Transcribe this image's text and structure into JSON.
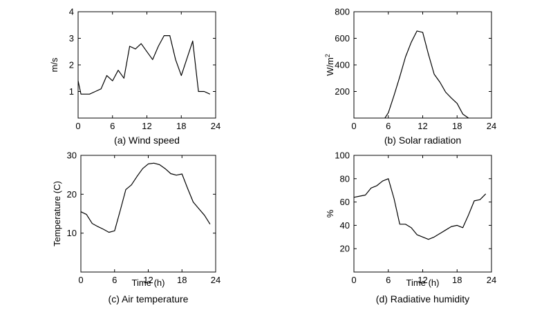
{
  "chart_data": [
    {
      "type": "line",
      "caption": "(a) Wind speed",
      "xlabel": "",
      "ylabel": "m/s",
      "xlim": [
        0,
        24
      ],
      "ylim": [
        0,
        4
      ],
      "xticks": [
        0,
        6,
        12,
        18,
        24
      ],
      "yticks": [
        1,
        2,
        3,
        4
      ],
      "grid": false,
      "series": [
        {
          "x": [
            0,
            0.5,
            1,
            2,
            3,
            4,
            5,
            6,
            7,
            8,
            9,
            10,
            11,
            12,
            13,
            14,
            15,
            16,
            17,
            18,
            20,
            21,
            22,
            23
          ],
          "y": [
            1.4,
            0.9,
            0.9,
            0.9,
            1.0,
            1.1,
            1.6,
            1.4,
            1.8,
            1.5,
            2.7,
            2.6,
            2.8,
            2.5,
            2.2,
            2.7,
            3.1,
            3.1,
            2.2,
            1.6,
            2.9,
            1.0,
            1.0,
            0.9
          ]
        }
      ]
    },
    {
      "type": "line",
      "caption": "(b) Solar radiation",
      "xlabel": "",
      "ylabel": "W/m",
      "ylabel_sup": "2",
      "xlim": [
        0,
        24
      ],
      "ylim": [
        0,
        800
      ],
      "xticks": [
        0,
        6,
        12,
        18,
        24
      ],
      "yticks": [
        200,
        400,
        600,
        800
      ],
      "grid": false,
      "series": [
        {
          "x": [
            5.4,
            6,
            7,
            8,
            9,
            10,
            11,
            12,
            13,
            14,
            15,
            16,
            17,
            18,
            19,
            20
          ],
          "y": [
            0,
            40,
            170,
            310,
            460,
            570,
            655,
            645,
            480,
            330,
            270,
            195,
            150,
            110,
            30,
            0
          ]
        }
      ]
    },
    {
      "type": "line",
      "caption": "(c) Air temperature",
      "xlabel": "Time (h)",
      "ylabel": "Temperature (C)",
      "xlim": [
        0,
        24
      ],
      "ylim": [
        0,
        30
      ],
      "xticks": [
        0,
        6,
        12,
        18,
        24
      ],
      "yticks": [
        10,
        20,
        30
      ],
      "grid": false,
      "series": [
        {
          "x": [
            0,
            1,
            2,
            3,
            4,
            5,
            6,
            7,
            8,
            9,
            10,
            11,
            12,
            13,
            14,
            15,
            16,
            17,
            18,
            19,
            20,
            21,
            22,
            23
          ],
          "y": [
            15.5,
            14.8,
            12.5,
            11.7,
            11.0,
            10.2,
            10.6,
            15.8,
            21.2,
            22.4,
            24.6,
            26.6,
            27.8,
            28.0,
            27.6,
            26.6,
            25.3,
            24.9,
            25.2,
            21.5,
            18.0,
            16.3,
            14.6,
            12.3
          ]
        }
      ]
    },
    {
      "type": "line",
      "caption": "(d) Radiative humidity",
      "xlabel": "Time (h)",
      "ylabel": "%",
      "xlim": [
        0,
        24
      ],
      "ylim": [
        0,
        100
      ],
      "xticks": [
        0,
        6,
        12,
        18,
        24
      ],
      "yticks": [
        20,
        40,
        60,
        80,
        100
      ],
      "grid": false,
      "series": [
        {
          "x": [
            0,
            1,
            2,
            3,
            4,
            5,
            6,
            7,
            8,
            9,
            10,
            11,
            12,
            13,
            14,
            15,
            16,
            17,
            18,
            19,
            20,
            21,
            22,
            23
          ],
          "y": [
            64,
            65,
            66,
            72,
            74,
            78,
            80,
            63,
            41,
            41,
            38,
            32,
            30,
            28,
            30,
            33,
            36,
            39,
            40,
            38,
            49,
            61,
            62,
            67
          ]
        }
      ]
    }
  ]
}
